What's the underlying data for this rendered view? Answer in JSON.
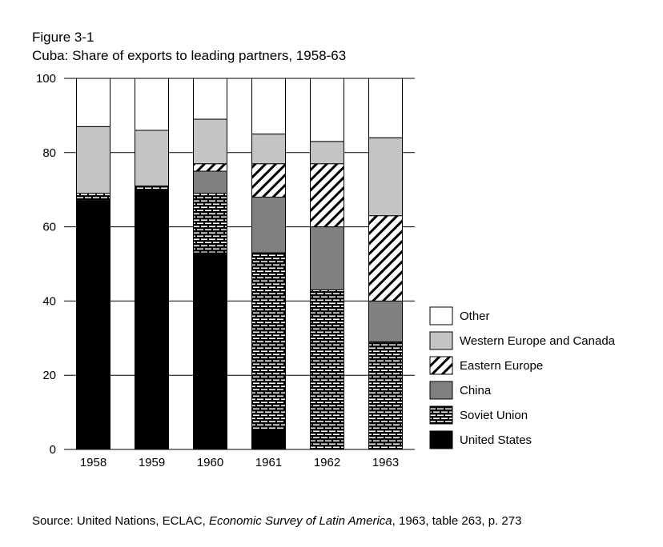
{
  "chart_data": {
    "type": "bar",
    "stacked": true,
    "figure_label": "Figure 3-1",
    "title": "Cuba:  Share of exports to leading partners, 1958-63",
    "xlabel": "",
    "ylabel": "",
    "ylim": [
      0,
      100
    ],
    "yticks": [
      "0",
      "20",
      "40",
      "60",
      "80",
      "100"
    ],
    "grid": "horizontal",
    "legend_position": "right",
    "categories": [
      "1958",
      "1959",
      "1960",
      "1961",
      "1962",
      "1963"
    ],
    "series": [
      {
        "name": "United States",
        "pattern": "solid-black",
        "values": [
          67,
          70,
          53,
          5,
          0,
          0
        ]
      },
      {
        "name": "Soviet Union",
        "pattern": "brick",
        "values": [
          2,
          1,
          16,
          48,
          43,
          29
        ]
      },
      {
        "name": "China",
        "pattern": "dark-gray",
        "values": [
          0,
          0,
          6,
          15,
          17,
          11
        ]
      },
      {
        "name": "Eastern Europe",
        "pattern": "diagonal-hatch",
        "values": [
          0,
          0,
          2,
          9,
          17,
          23
        ]
      },
      {
        "name": "Western Europe and Canada",
        "pattern": "light-gray",
        "values": [
          18,
          15,
          12,
          8,
          6,
          21
        ]
      },
      {
        "name": "Other",
        "pattern": "white",
        "values": [
          13,
          14,
          11,
          15,
          17,
          16
        ]
      }
    ],
    "legend_order": [
      "Other",
      "Western Europe and Canada",
      "Eastern Europe",
      "China",
      "Soviet Union",
      "United States"
    ]
  },
  "source": {
    "prefix": "Source:  United Nations, ECLAC, ",
    "title_italic": "Economic Survey of Latin America",
    "suffix": ", 1963, table 263, p. 273"
  }
}
